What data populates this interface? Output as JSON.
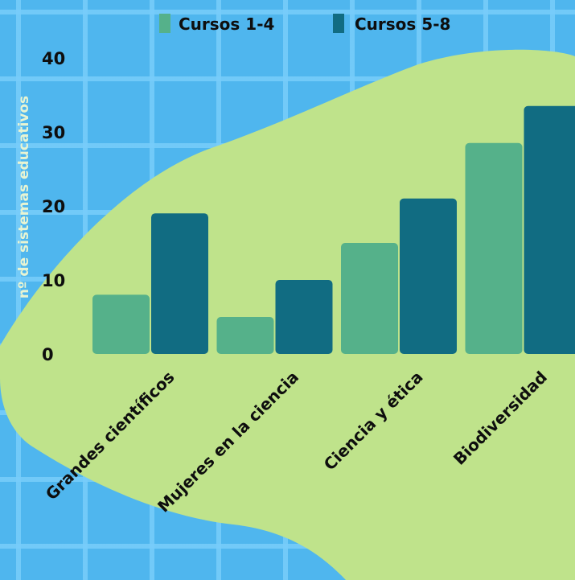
{
  "colors": {
    "background": "#4fb6ee",
    "blob": "#bfe38b",
    "series_1": "#55b18a",
    "series_2": "#116c82",
    "text": "#0e0e0e",
    "ylabel": "#e8f4d2"
  },
  "chart_data": {
    "type": "bar",
    "title": "",
    "xlabel": "",
    "ylabel": "nº de sistemas educativos",
    "categories": [
      "Grandes científicos",
      "Mujeres en la ciencia",
      "Ciencia y ética",
      "Biodiversidad"
    ],
    "series": [
      {
        "name": "Cursos 1-4",
        "values": [
          8,
          5,
          15,
          28.5
        ]
      },
      {
        "name": "Cursos 5-8",
        "values": [
          19,
          10,
          21,
          33.5
        ]
      }
    ],
    "ylim": [
      0,
      40
    ],
    "yticks": [
      "0",
      "10",
      "20",
      "30",
      "40"
    ],
    "grid": false,
    "legend_position": "top-center"
  }
}
